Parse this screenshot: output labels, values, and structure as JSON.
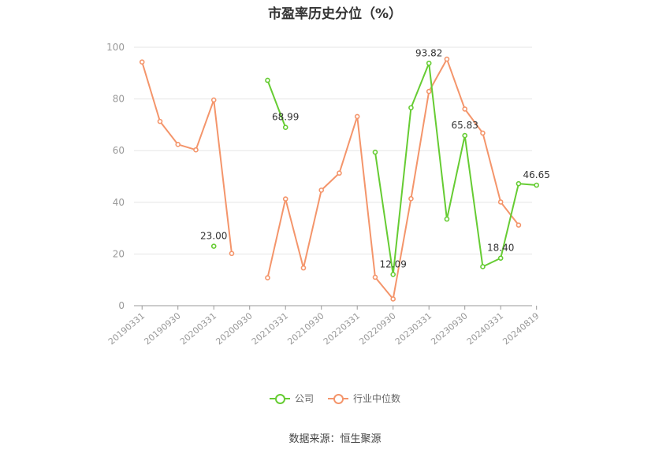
{
  "title": "市盈率历史分位（%）",
  "source": "数据来源：恒生聚源",
  "chart_data": {
    "type": "line",
    "x": [
      "20190331",
      "20190630",
      "20190930",
      "20191231",
      "20200331",
      "20200630",
      "20200930",
      "20201231",
      "20210331",
      "20210630",
      "20210930",
      "20211231",
      "20220331",
      "20220630",
      "20220930",
      "20221231",
      "20230331",
      "20230630",
      "20230930",
      "20231231",
      "20240331",
      "20240630",
      "20240819"
    ],
    "xticks": [
      "20190331",
      "20190930",
      "20200331",
      "20200930",
      "20210331",
      "20210930",
      "20220331",
      "20220930",
      "20230331",
      "20230930",
      "20240331",
      "20240819"
    ],
    "yticks": [
      0,
      20,
      40,
      60,
      80,
      100
    ],
    "ylim": [
      0,
      100
    ],
    "series": [
      {
        "name": "公司",
        "color": "#66cc33",
        "values": [
          null,
          null,
          null,
          null,
          23.0,
          null,
          null,
          87.2,
          68.99,
          null,
          null,
          null,
          null,
          59.4,
          12.09,
          76.6,
          93.82,
          33.5,
          65.83,
          15.1,
          18.4,
          47.2,
          46.65
        ],
        "labels": {
          "4": "23.00",
          "8": "68.99",
          "14": "12.09",
          "16": "93.82",
          "18": "65.83",
          "20": "18.40",
          "22": "46.65"
        }
      },
      {
        "name": "行业中位数",
        "color": "#f4956b",
        "values": [
          94.3,
          71.3,
          62.4,
          60.3,
          79.6,
          20.2,
          null,
          10.8,
          41.3,
          14.6,
          44.7,
          51.3,
          73.2,
          11.0,
          2.6,
          41.4,
          82.9,
          95.4,
          76.1,
          66.8,
          40.1,
          31.2,
          null
        ]
      }
    ],
    "grid": true,
    "legend": "bottom-center"
  }
}
